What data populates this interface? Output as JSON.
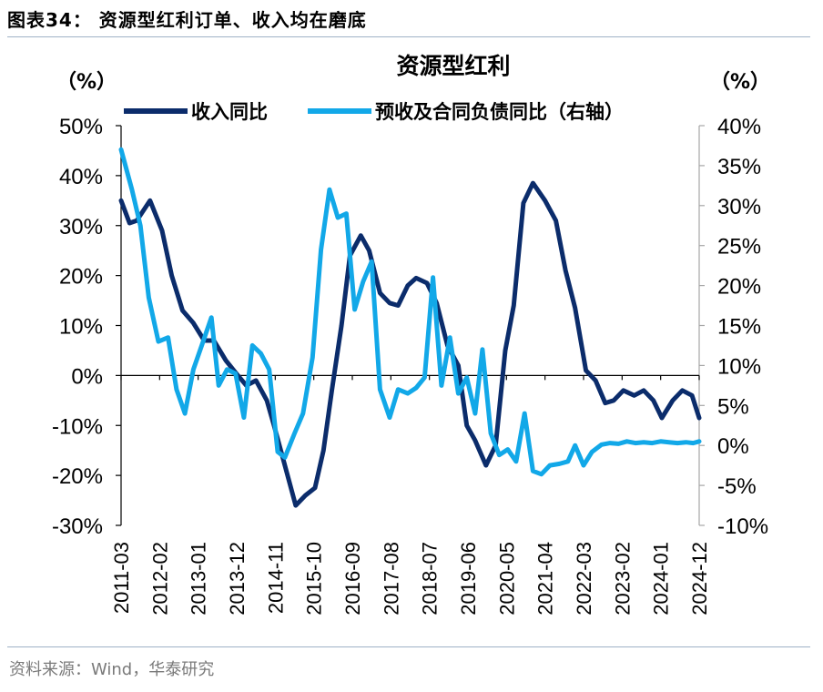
{
  "header": {
    "figure_title": "图表34：  资源型红利订单、收入均在磨底"
  },
  "footer": {
    "source": "资料来源：Wind，华泰研究"
  },
  "colors": {
    "revenue": "#0b2c6b",
    "contract": "#12a8e8",
    "axis": "#000000",
    "right_axis": "#a6a6a6",
    "rule": "#9fb2c6"
  },
  "chart_data": {
    "type": "line",
    "title": "资源型红利",
    "left_unit": "（%）",
    "right_unit": "（%）",
    "left_ylim": [
      -30,
      50
    ],
    "right_ylim": [
      -10,
      40
    ],
    "left_ticks": [
      "50%",
      "40%",
      "30%",
      "20%",
      "10%",
      "0%",
      "-10%",
      "-20%",
      "-30%"
    ],
    "right_ticks": [
      "40%",
      "35%",
      "30%",
      "25%",
      "20%",
      "15%",
      "10%",
      "5%",
      "0%",
      "-5%",
      "-10%"
    ],
    "x_ticks": [
      "2011-03",
      "2012-02",
      "2013-01",
      "2013-12",
      "2014-11",
      "2015-10",
      "2016-09",
      "2017-08",
      "2018-07",
      "2019-06",
      "2020-05",
      "2021-04",
      "2022-03",
      "2023-02",
      "2024-01",
      "2024-12"
    ],
    "x_span": [
      0,
      48
    ],
    "series": [
      {
        "name": "收入同比",
        "axis": "left",
        "x": [
          0,
          0.7,
          1.3,
          2.4,
          3.4,
          4.2,
          5.1,
          6.0,
          6.9,
          7.7,
          8.7,
          9.7,
          10.4,
          11.2,
          12.1,
          12.7,
          13.6,
          14.5,
          15.3,
          16.1,
          16.8,
          17.5,
          18.3,
          19.0,
          19.9,
          20.6,
          21.5,
          22.3,
          23.0,
          23.8,
          24.5,
          25.4,
          26.2,
          27.1,
          28.0,
          28.7,
          29.4,
          30.3,
          31.1,
          31.9,
          32.6,
          33.4,
          34.2,
          35.2,
          36.1,
          36.9,
          37.7,
          38.6,
          39.4,
          40.2,
          40.9,
          41.7,
          42.6,
          43.4,
          44.2,
          44.9,
          45.8,
          46.6,
          47.4,
          48.0
        ],
        "values": [
          35,
          30.5,
          31,
          35,
          29,
          20,
          13,
          10.5,
          7,
          7,
          3,
          0,
          -2,
          -1,
          -5,
          -10,
          -18,
          -26,
          -24,
          -22.5,
          -15,
          -3,
          10,
          24,
          28,
          25,
          16.5,
          14.5,
          14,
          18,
          19.5,
          18.5,
          14.5,
          6,
          2,
          -10,
          -13,
          -18,
          -14,
          5,
          14,
          34.5,
          38.5,
          35,
          31,
          21,
          13.5,
          1,
          -1,
          -5.5,
          -5,
          -3,
          -4,
          -3,
          -5,
          -8.5,
          -5,
          -3,
          -4,
          -8.5
        ]
      },
      {
        "name": "预收及合同负债同比（右轴）",
        "axis": "right",
        "x": [
          0,
          0.9,
          1.6,
          2.3,
          3.1,
          3.9,
          4.6,
          5.3,
          6.0,
          6.7,
          7.5,
          8.1,
          8.8,
          9.5,
          10.2,
          10.9,
          11.6,
          12.3,
          13.0,
          13.6,
          14.4,
          15.1,
          15.9,
          16.6,
          17.3,
          18.0,
          18.7,
          19.4,
          20.1,
          20.8,
          21.5,
          22.3,
          23.0,
          23.8,
          24.5,
          25.2,
          25.9,
          26.6,
          27.3,
          28.0,
          28.7,
          29.4,
          30.0,
          30.7,
          31.4,
          32.1,
          32.8,
          33.5,
          34.2,
          34.9,
          35.6,
          36.4,
          37.1,
          37.7,
          38.4,
          39.1,
          39.9,
          40.6,
          41.3,
          42.0,
          42.7,
          43.4,
          44.1,
          44.8,
          45.5,
          46.2,
          46.9,
          47.5,
          48.0
        ],
        "values": [
          37,
          32,
          27.5,
          18.5,
          13,
          13.5,
          7,
          4,
          9.5,
          12.5,
          16,
          7.5,
          9.5,
          9,
          3.5,
          12.5,
          11.5,
          9.5,
          -0.8,
          -1.5,
          1.5,
          4,
          11,
          24.5,
          32,
          28.5,
          29,
          17,
          20.5,
          23,
          7,
          3.5,
          7,
          6.5,
          7.2,
          8.5,
          21,
          7.5,
          13.5,
          6.5,
          8.5,
          4,
          12,
          1.5,
          -1.2,
          -0.5,
          -2,
          4,
          -3.2,
          -3.6,
          -2.5,
          -2.3,
          -2,
          0,
          -2.5,
          -0.8,
          0.1,
          0.3,
          0.2,
          0.5,
          0.3,
          0.4,
          0.3,
          0.5,
          0.4,
          0.3,
          0.4,
          0.3,
          0.5
        ]
      }
    ],
    "legend": [
      "收入同比",
      "预收及合同负债同比（右轴）"
    ]
  }
}
